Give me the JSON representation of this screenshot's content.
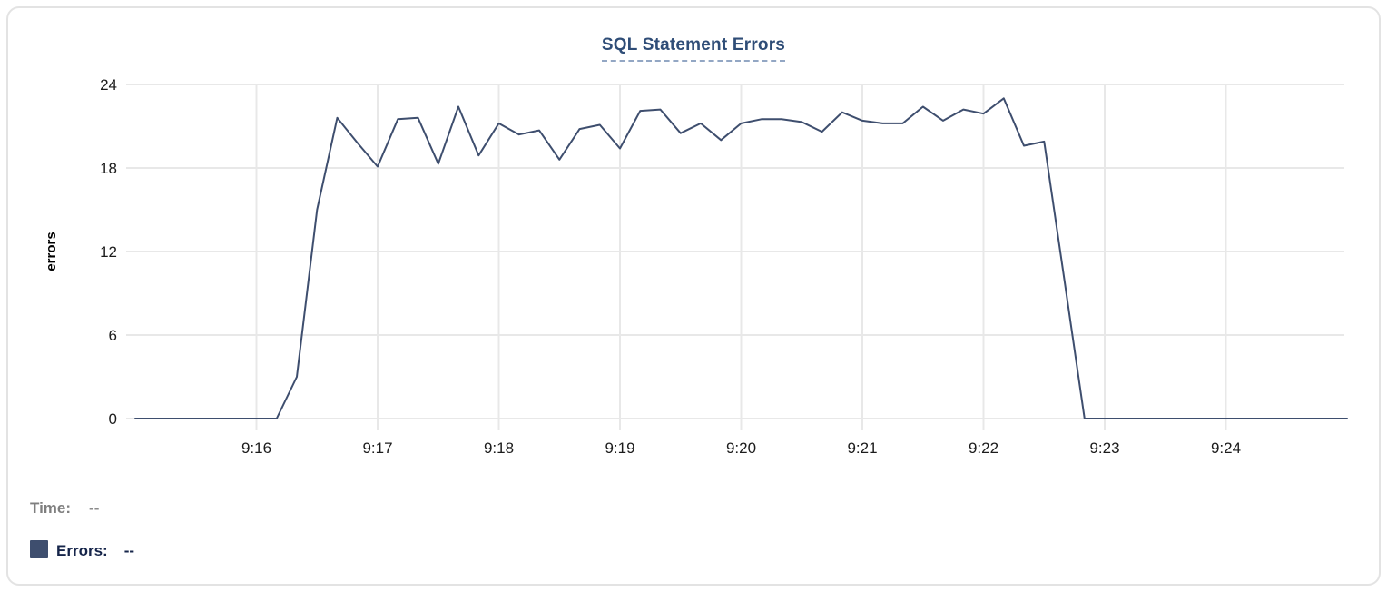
{
  "header": {
    "title": "SQL Statement Errors"
  },
  "chart_data": {
    "type": "line",
    "title": "SQL Statement Errors",
    "xlabel": "",
    "ylabel": "errors",
    "ylim": [
      0,
      24
    ],
    "yticks": [
      0,
      6,
      12,
      18,
      24
    ],
    "xticks": [
      "9:16",
      "9:17",
      "9:18",
      "9:19",
      "9:20",
      "9:21",
      "9:22",
      "9:23",
      "9:24"
    ],
    "grid": true,
    "legend_position": "none",
    "line_color": "#3e4e6e",
    "grid_color": "#e8e8e8",
    "tick_color": "#1c1c1c",
    "series": [
      {
        "name": "Errors",
        "color": "#3e4e6e",
        "points": [
          [
            "9:15:00",
            0
          ],
          [
            "9:15:10",
            0
          ],
          [
            "9:15:20",
            0
          ],
          [
            "9:15:30",
            0
          ],
          [
            "9:15:40",
            0
          ],
          [
            "9:15:50",
            0
          ],
          [
            "9:16:00",
            0
          ],
          [
            "9:16:10",
            0
          ],
          [
            "9:16:20",
            3
          ],
          [
            "9:16:30",
            15
          ],
          [
            "9:16:40",
            21.6
          ],
          [
            "9:16:50",
            19.8
          ],
          [
            "9:17:00",
            18.1
          ],
          [
            "9:17:10",
            21.5
          ],
          [
            "9:17:20",
            21.6
          ],
          [
            "9:17:30",
            18.3
          ],
          [
            "9:17:40",
            22.4
          ],
          [
            "9:17:50",
            18.9
          ],
          [
            "9:18:00",
            21.2
          ],
          [
            "9:18:10",
            20.4
          ],
          [
            "9:18:20",
            20.7
          ],
          [
            "9:18:30",
            18.6
          ],
          [
            "9:18:40",
            20.8
          ],
          [
            "9:18:50",
            21.1
          ],
          [
            "9:19:00",
            19.4
          ],
          [
            "9:19:10",
            22.1
          ],
          [
            "9:19:20",
            22.2
          ],
          [
            "9:19:30",
            20.5
          ],
          [
            "9:19:40",
            21.2
          ],
          [
            "9:19:50",
            20.0
          ],
          [
            "9:20:00",
            21.2
          ],
          [
            "9:20:10",
            21.5
          ],
          [
            "9:20:20",
            21.5
          ],
          [
            "9:20:30",
            21.3
          ],
          [
            "9:20:40",
            20.6
          ],
          [
            "9:20:50",
            22.0
          ],
          [
            "9:21:00",
            21.4
          ],
          [
            "9:21:10",
            21.2
          ],
          [
            "9:21:20",
            21.2
          ],
          [
            "9:21:30",
            22.4
          ],
          [
            "9:21:40",
            21.4
          ],
          [
            "9:21:50",
            22.2
          ],
          [
            "9:22:00",
            21.9
          ],
          [
            "9:22:10",
            23.0
          ],
          [
            "9:22:20",
            19.6
          ],
          [
            "9:22:30",
            19.9
          ],
          [
            "9:22:40",
            10
          ],
          [
            "9:22:50",
            0
          ],
          [
            "9:23:00",
            0
          ],
          [
            "9:23:10",
            0
          ],
          [
            "9:23:20",
            0
          ],
          [
            "9:23:30",
            0
          ],
          [
            "9:23:40",
            0
          ],
          [
            "9:23:50",
            0
          ],
          [
            "9:24:00",
            0
          ],
          [
            "9:24:10",
            0
          ],
          [
            "9:24:20",
            0
          ],
          [
            "9:24:30",
            0
          ],
          [
            "9:24:40",
            0
          ],
          [
            "9:24:50",
            0
          ],
          [
            "9:25:00",
            0
          ]
        ]
      }
    ]
  },
  "readout": {
    "time_label": "Time:",
    "time_value": "--",
    "errors_label": "Errors:",
    "errors_value": "--",
    "swatch_color": "#3e4e6e"
  }
}
